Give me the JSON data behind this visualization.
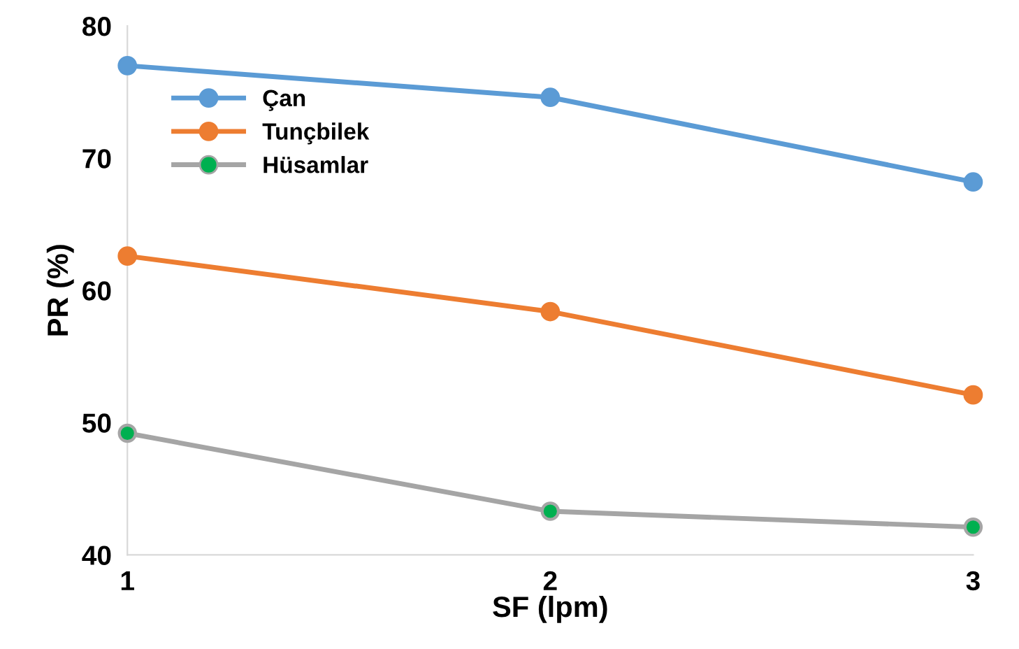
{
  "chart_data": {
    "type": "line",
    "xlabel": "SF (lpm)",
    "ylabel": "PR (%)",
    "x": [
      1,
      2,
      3
    ],
    "series": [
      {
        "name": "Çan",
        "color": "#5b9bd5",
        "values": [
          77.0,
          74.6,
          68.2
        ]
      },
      {
        "name": "Tunçbilek",
        "color": "#ed7d31",
        "values": [
          62.6,
          58.4,
          52.1
        ]
      },
      {
        "name": "Hüsamlar",
        "color": "#a5a5a5",
        "colors": [
          "#00b050",
          "#00b050",
          "#00b050"
        ],
        "values": [
          49.2,
          43.3,
          42.1
        ]
      }
    ],
    "xlim": [
      1,
      3
    ],
    "xticks": [
      1,
      2,
      3
    ],
    "ylim": [
      40,
      80
    ],
    "yticks": [
      40,
      50,
      60,
      70,
      80
    ],
    "grid": false,
    "legend": "top left",
    "marker": "circle",
    "line_style": "solid"
  }
}
